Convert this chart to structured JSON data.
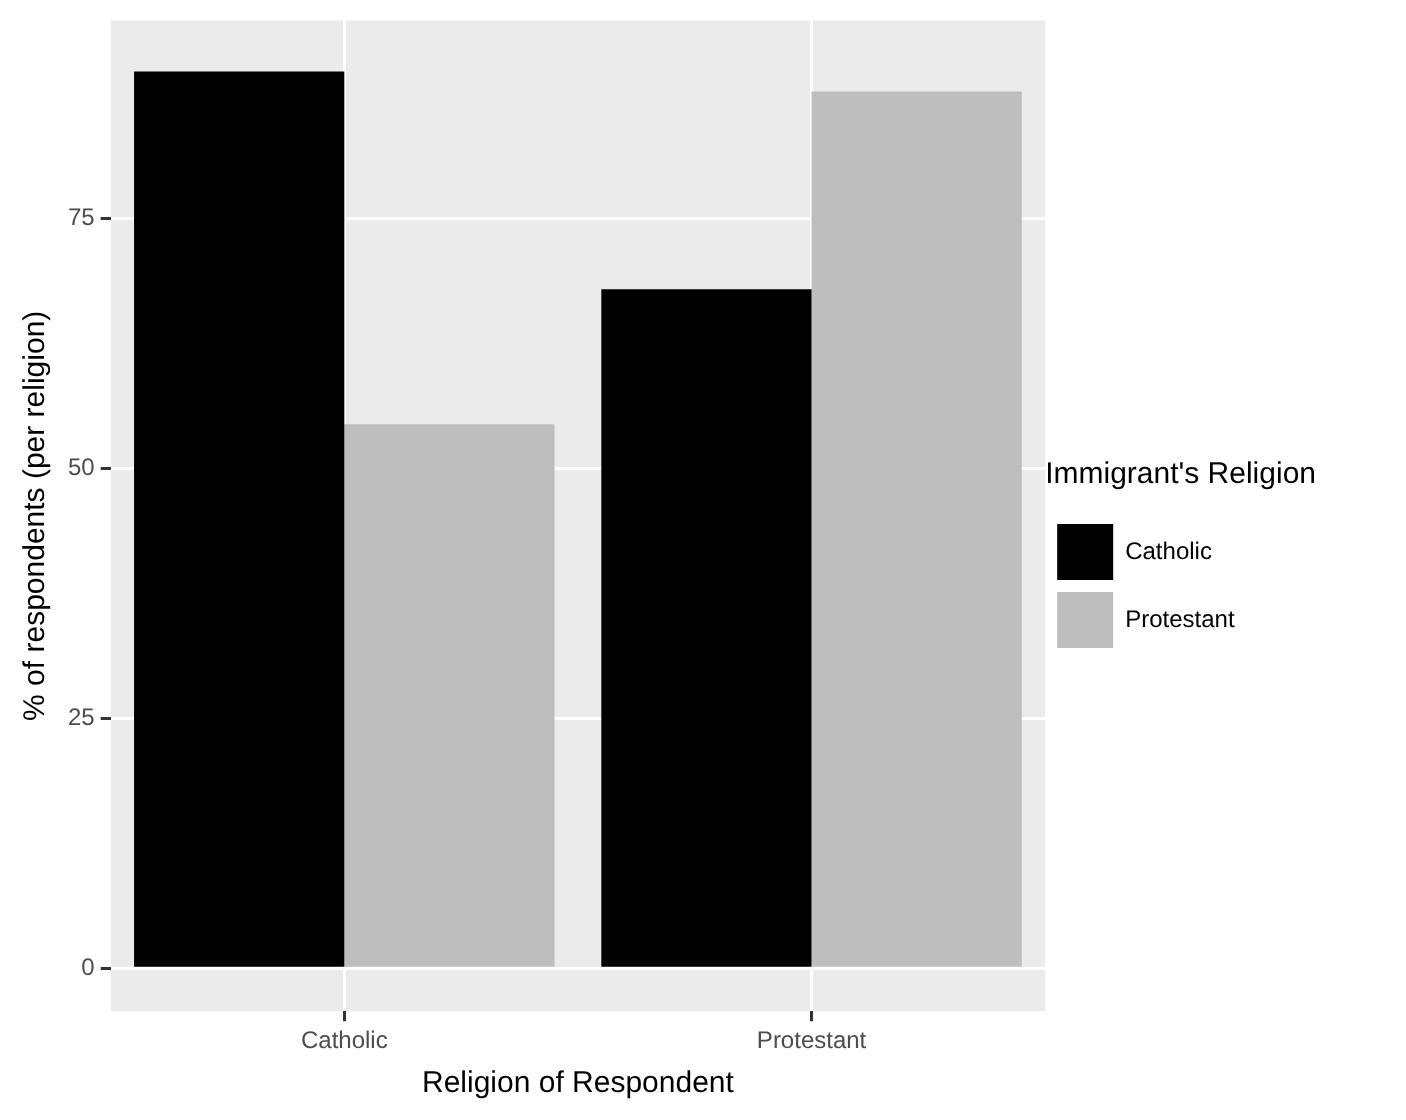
{
  "chart_data": {
    "type": "bar",
    "xlabel": "Religion of Respondent",
    "ylabel": "% of respondents (per religion)",
    "legend_title": "Immigrant's Religion",
    "categories": [
      "Catholic",
      "Protestant"
    ],
    "series": [
      {
        "name": "Catholic",
        "color": "#000000",
        "values": [
          89.7,
          67.9
        ]
      },
      {
        "name": "Protestant",
        "color": "#bebebe",
        "values": [
          54.4,
          87.7
        ]
      }
    ],
    "ylim": [
      -4.3,
      94.8
    ],
    "yticks": [
      0,
      25,
      50,
      75
    ],
    "grid": true,
    "legend": "right"
  }
}
